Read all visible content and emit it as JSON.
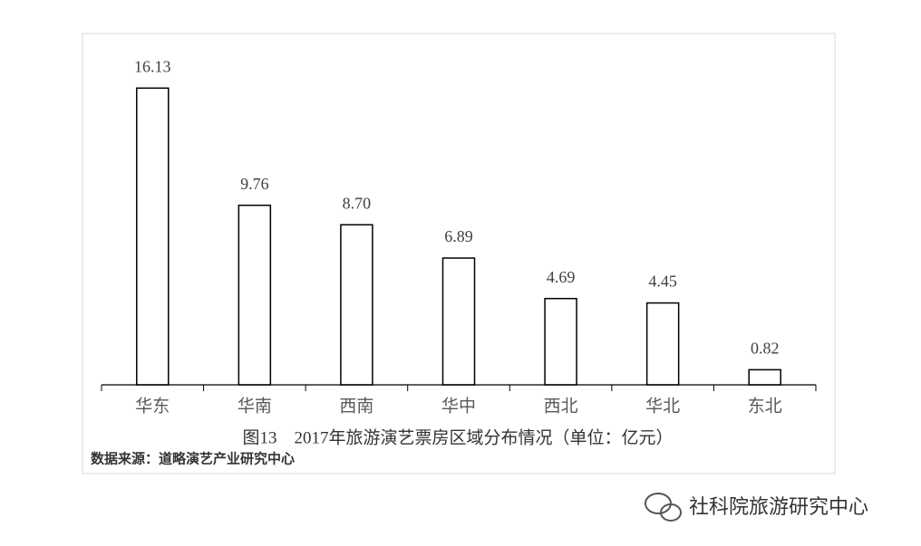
{
  "chart_data": {
    "type": "bar",
    "title": "图13　2017年旅游演艺票房区域分布情况（单位：亿元）",
    "source": "数据来源：道略演艺产业研究中心",
    "categories": [
      "华东",
      "华南",
      "西南",
      "华中",
      "西北",
      "华北",
      "东北"
    ],
    "values": [
      16.13,
      9.76,
      8.7,
      6.89,
      4.69,
      4.45,
      0.82
    ],
    "value_labels": [
      "16.13",
      "9.76",
      "8.70",
      "6.89",
      "4.69",
      "4.45",
      "0.82"
    ],
    "color": "#ffffff",
    "ylim": [
      0,
      19
    ]
  },
  "watermark": "社科院旅游研究中心"
}
